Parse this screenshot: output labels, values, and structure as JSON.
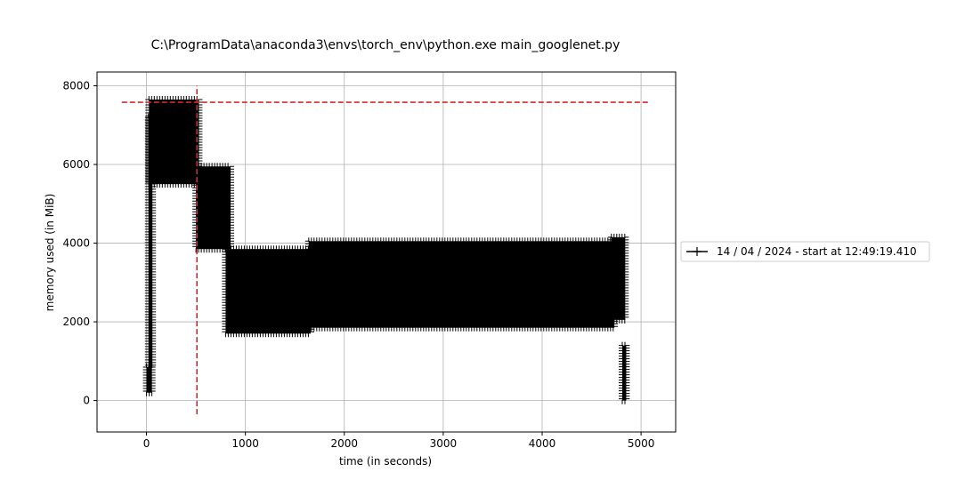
{
  "chart_data": {
    "type": "line",
    "title": "C:\\ProgramData\\anaconda3\\envs\\torch_env\\python.exe main_googlenet.py",
    "xlabel": "time (in seconds)",
    "ylabel": "memory used (in MiB)",
    "xlim": [
      -500,
      5350
    ],
    "ylim": [
      -800,
      8350
    ],
    "xticks": [
      0,
      1000,
      2000,
      3000,
      4000,
      5000
    ],
    "yticks": [
      0,
      2000,
      4000,
      6000,
      8000
    ],
    "grid": true,
    "legend": {
      "placement": "right-outside"
    },
    "colors": {
      "series": "#000000",
      "reference": "#d62728",
      "grid": "#b0b0b0"
    },
    "series": [
      {
        "name": "14 / 04 / 2024 - start at 12:49:19.410",
        "marker": "+",
        "blocks": [
          {
            "x": [
              0,
              55
            ],
            "y": [
              200,
              850
            ]
          },
          {
            "x": [
              20,
              60
            ],
            "y": [
              850,
              7200
            ]
          },
          {
            "x": [
              25,
              530
            ],
            "y": [
              5500,
              7650
            ]
          },
          {
            "x": [
              500,
              850
            ],
            "y": [
              3850,
              5950
            ]
          },
          {
            "x": [
              800,
              1660
            ],
            "y": [
              1700,
              3850
            ]
          },
          {
            "x": [
              1640,
              4730
            ],
            "y": [
              1850,
              4050
            ]
          },
          {
            "x": [
              4700,
              4840
            ],
            "y": [
              2050,
              4150
            ]
          },
          {
            "x": [
              4810,
              4850
            ],
            "y": [
              0,
              1400
            ]
          }
        ]
      }
    ],
    "reference_lines": [
      {
        "orientation": "horizontal",
        "y": 7580,
        "x": [
          -250,
          5080
        ],
        "style": "dashed"
      },
      {
        "orientation": "vertical",
        "x": 510,
        "y": [
          -350,
          8000
        ],
        "style": "dashed"
      }
    ]
  }
}
